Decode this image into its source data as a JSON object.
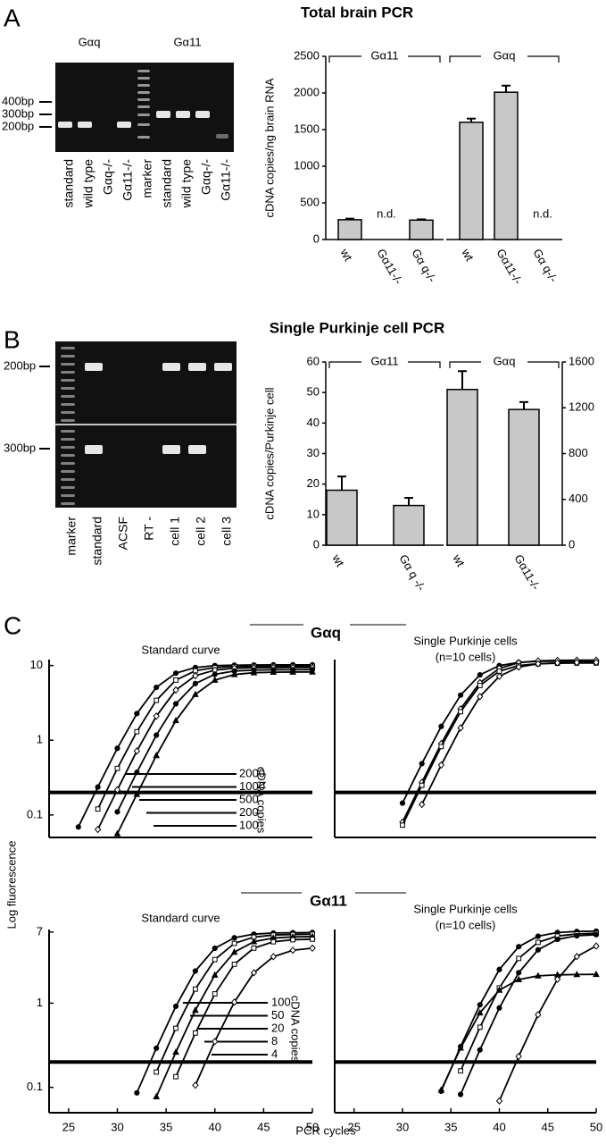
{
  "panel_labels": [
    "A",
    "B",
    "C"
  ],
  "gel_a": {
    "group_labels": [
      "Gαq",
      "Gα11"
    ],
    "size_labels": [
      "400bp",
      "300bp",
      "200bp"
    ],
    "lanes": [
      "standard",
      "wild type",
      "Gαq-/-",
      "Gα11-/-",
      "marker",
      "standard",
      "wild type",
      "Gαq-/-",
      "Gα11-/-"
    ]
  },
  "gel_b": {
    "size_labels": [
      "200bp",
      "300bp"
    ],
    "lanes": [
      "marker",
      "standard",
      "ACSF",
      "RT -",
      "cell 1",
      "cell 2",
      "cell 3"
    ]
  },
  "chart_data": [
    {
      "type": "bar",
      "title": "Total brain PCR",
      "ylabel": "cDNA copies/ng brain RNA",
      "color": "#c8c8c8",
      "ylim": [
        0,
        2500
      ],
      "yticks": [
        0,
        500,
        1000,
        1500,
        2000,
        2500
      ],
      "groups": [
        {
          "name": "Gα11",
          "axis": "y",
          "categories": [
            "wt",
            "Gα11-/-",
            "Gα q-/-"
          ],
          "values": [
            270,
            null,
            265
          ],
          "errors": [
            15,
            null,
            10
          ],
          "value_labels": [
            null,
            "n.d.",
            null
          ]
        },
        {
          "name": "Gαq",
          "axis": "y",
          "categories": [
            "wt",
            "Gα11-/-",
            "Gα q-/-"
          ],
          "values": [
            1600,
            2010,
            null
          ],
          "errors": [
            50,
            90,
            null
          ],
          "value_labels": [
            null,
            null,
            "n.d."
          ]
        }
      ]
    },
    {
      "type": "bar",
      "title": "Single Purkinje cell PCR",
      "ylabel": "cDNA copies/Purkinje cell",
      "color": "#c8c8c8",
      "ylim": [
        0,
        60
      ],
      "yticks": [
        0,
        10,
        20,
        30,
        40,
        50,
        60
      ],
      "y2lim": [
        0,
        1600
      ],
      "y2ticks": [
        0,
        400,
        800,
        1200,
        1600
      ],
      "groups": [
        {
          "name": "Gα11",
          "axis": "y",
          "categories": [
            "wt",
            "Gα q -/-"
          ],
          "values": [
            18,
            13
          ],
          "errors": [
            4.5,
            2.5
          ]
        },
        {
          "name": "Gαq",
          "axis": "y2",
          "categories": [
            "wt",
            "Gα11-/-"
          ],
          "values": [
            1360,
            1185
          ],
          "errors": [
            160,
            65
          ]
        }
      ]
    },
    {
      "type": "line",
      "title": "Standard curve",
      "log_scale": true,
      "xlim": [
        23,
        50
      ],
      "ylim": [
        0.05,
        12
      ],
      "yticks": [
        0.1,
        1,
        10
      ],
      "threshold": 0.2,
      "legend_title": "cDNA copies",
      "x": [
        24,
        26,
        28,
        30,
        32,
        34,
        36,
        38,
        40,
        42,
        44,
        46,
        48,
        50
      ],
      "series": [
        {
          "name": "2000",
          "color": "#000000",
          "marker": "circle",
          "values": [
            null,
            0.069,
            0.236,
            0.78,
            2.27,
            5.1,
            7.9,
            9.4,
            9.97,
            10.1,
            10.15,
            10.2,
            10.2,
            10.2
          ]
        },
        {
          "name": "1000",
          "color": "#000000",
          "marker": "square",
          "values": [
            null,
            null,
            0.12,
            0.42,
            1.3,
            3.42,
            6.38,
            8.5,
            9.39,
            9.67,
            9.76,
            9.78,
            9.8,
            9.8
          ]
        },
        {
          "name": "500",
          "color": "#000000",
          "marker": "diamond",
          "values": [
            null,
            null,
            0.064,
            0.217,
            0.716,
            2.1,
            4.7,
            7.3,
            8.69,
            9.18,
            9.33,
            9.37,
            9.39,
            9.4
          ]
        },
        {
          "name": "200",
          "color": "#000000",
          "marker": "circle",
          "values": [
            null,
            null,
            null,
            0.11,
            0.372,
            1.17,
            3.07,
            5.73,
            7.63,
            8.43,
            8.69,
            8.76,
            8.78,
            8.8
          ]
        },
        {
          "name": "100",
          "color": "#000000",
          "marker": "triangle",
          "values": [
            null,
            null,
            null,
            0.056,
            0.189,
            0.625,
            1.83,
            4.1,
            6.37,
            7.58,
            8.01,
            8.14,
            8.18,
            8.2
          ]
        }
      ]
    },
    {
      "type": "line",
      "title": "Single Purkinje cells",
      "subtitle": "(n=10 cells)",
      "log_scale": true,
      "xlim": [
        23,
        50
      ],
      "ylim": [
        0.05,
        12
      ],
      "threshold": 0.2,
      "x": [
        24,
        26,
        28,
        30,
        32,
        34,
        36,
        38,
        40,
        42,
        44,
        46,
        48,
        50
      ],
      "series": [
        {
          "color": "#000000",
          "marker": "circle",
          "values": [
            null,
            null,
            null,
            0.144,
            0.486,
            1.53,
            4.01,
            7.49,
            9.97,
            11.02,
            11.35,
            11.45,
            11.5,
            11.5
          ]
        },
        {
          "color": "#000000",
          "marker": "diamond",
          "values": [
            null,
            null,
            null,
            0.08,
            0.273,
            0.899,
            2.63,
            5.9,
            9.17,
            10.9,
            11.53,
            11.72,
            11.78,
            11.8
          ]
        },
        {
          "color": "#000000",
          "marker": "square",
          "values": [
            null,
            null,
            null,
            0.073,
            0.249,
            0.823,
            2.41,
            5.4,
            8.39,
            9.98,
            10.55,
            10.72,
            10.78,
            10.8
          ]
        },
        {
          "color": "#000000",
          "marker": "diamond",
          "values": [
            null,
            null,
            null,
            null,
            0.138,
            0.465,
            1.46,
            3.84,
            7.16,
            9.54,
            10.54,
            10.86,
            10.96,
            11
          ]
        }
      ]
    },
    {
      "type": "line",
      "title": "Standard curve",
      "log_scale": true,
      "xlim": [
        23,
        50
      ],
      "ylim": [
        0.05,
        7.5
      ],
      "yticks": [
        0.1,
        1,
        7
      ],
      "xticks": [
        25,
        30,
        35,
        40,
        45,
        50
      ],
      "threshold": 0.2,
      "legend_title": "cDNA copies",
      "x": [
        24,
        26,
        28,
        30,
        32,
        34,
        36,
        38,
        40,
        42,
        44,
        46,
        48,
        50
      ],
      "series": [
        {
          "name": "100",
          "color": "#000000",
          "marker": "circle",
          "values": [
            null,
            null,
            null,
            null,
            0.086,
            0.292,
            0.918,
            2.41,
            4.49,
            5.98,
            6.61,
            6.81,
            6.87,
            6.9
          ]
        },
        {
          "name": "50",
          "color": "#000000",
          "marker": "square",
          "values": [
            null,
            null,
            null,
            null,
            null,
            0.152,
            0.503,
            1.47,
            3.3,
            5.13,
            6.1,
            6.45,
            6.55,
            6.6
          ]
        },
        {
          "name": "20",
          "color": "#000000",
          "marker": "triangle",
          "values": [
            null,
            null,
            null,
            null,
            null,
            0.0775,
            0.262,
            0.825,
            2.16,
            4.04,
            5.38,
            5.94,
            6.12,
            6.18
          ]
        },
        {
          "name": "8",
          "color": "#000000",
          "marker": "square",
          "values": [
            null,
            null,
            null,
            null,
            null,
            null,
            0.134,
            0.442,
            1.29,
            2.9,
            4.51,
            5.36,
            5.67,
            5.76
          ]
        },
        {
          "name": "4",
          "color": "#000000",
          "marker": "diamond",
          "values": [
            null,
            null,
            null,
            null,
            null,
            null,
            null,
            0.106,
            0.351,
            1.03,
            2.3,
            3.57,
            4.25,
            4.5
          ]
        }
      ]
    },
    {
      "type": "line",
      "title": "Single Purkinje cells",
      "subtitle": "(n=10 cells)",
      "log_scale": true,
      "xlim": [
        23,
        50
      ],
      "ylim": [
        0.05,
        7.5
      ],
      "xticks": [
        25,
        30,
        35,
        40,
        45,
        50
      ],
      "threshold": 0.2,
      "x": [
        24,
        26,
        28,
        30,
        32,
        34,
        36,
        38,
        40,
        42,
        44,
        46,
        48,
        50
      ],
      "series": [
        {
          "color": "#000000",
          "marker": "circle",
          "values": [
            null,
            null,
            null,
            null,
            null,
            0.09,
            0.305,
            0.958,
            2.51,
            4.69,
            6.24,
            6.9,
            7.11,
            7.17
          ]
        },
        {
          "color": "#000000",
          "marker": "square",
          "values": [
            null,
            null,
            null,
            null,
            null,
            null,
            0.157,
            0.518,
            1.52,
            3.4,
            5.28,
            6.28,
            6.64,
            6.75
          ]
        },
        {
          "color": "#000000",
          "marker": "circle",
          "values": [
            null,
            null,
            null,
            null,
            null,
            null,
            0.0825,
            0.279,
            0.878,
            2.3,
            4.3,
            5.72,
            6.32,
            6.51
          ]
        },
        {
          "color": "#000000",
          "marker": "triangle",
          "values": [
            null,
            null,
            null,
            null,
            null,
            0.093,
            0.293,
            0.768,
            1.43,
            1.91,
            2.11,
            2.17,
            2.19,
            2.2
          ]
        },
        {
          "color": "#000000",
          "marker": "diamond",
          "values": [
            null,
            null,
            null,
            null,
            null,
            null,
            null,
            null,
            0.069,
            0.233,
            0.73,
            1.92,
            3.58,
            4.77
          ]
        }
      ]
    }
  ],
  "panel_c": {
    "group_titles": [
      "Gαq",
      "Gα11"
    ],
    "ylabel": "Log fluorescence",
    "xlabel": "PCR cycles"
  }
}
